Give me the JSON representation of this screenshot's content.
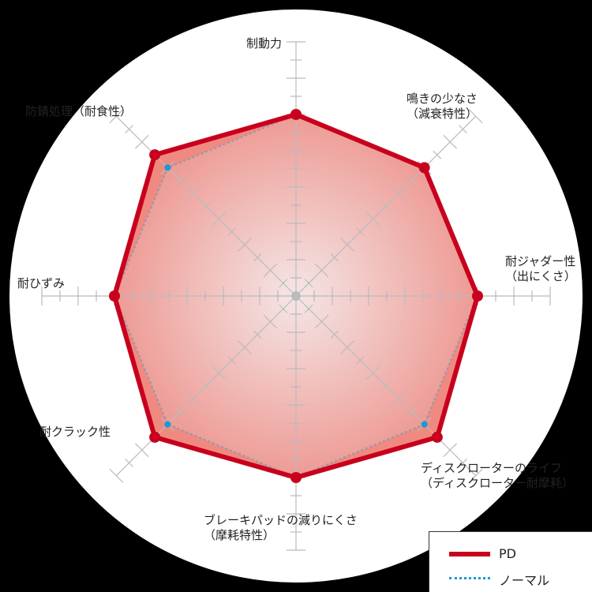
{
  "chart_data": {
    "type": "radar",
    "axes": [
      {
        "label": "制動力"
      },
      {
        "label": "鳴きの少なさ\n（減衰特性）"
      },
      {
        "label": "耐ジャダー性\n（出にくさ）"
      },
      {
        "label": "ディスクローターのライフ\n（ディスクローター耐摩耗）"
      },
      {
        "label": "ブレーキパッドの減りにくさ\n（摩耗特性）"
      },
      {
        "label": "耐クラック性"
      },
      {
        "label": "耐ひずみ"
      },
      {
        "label": "防錆処理（耐食性）"
      }
    ],
    "range": [
      0,
      14
    ],
    "series": [
      {
        "name": "PD",
        "values": [
          10,
          10,
          10,
          11,
          10,
          11,
          10,
          11
        ],
        "color": "#c8001e",
        "style": "solid"
      },
      {
        "name": "ノーマル",
        "values": [
          10,
          10,
          10,
          10,
          10,
          10,
          10,
          10
        ],
        "color": "#1a9ad6",
        "style": "dotted"
      }
    ],
    "legend_position": "bottom-right"
  },
  "colors": {
    "background": "#000000",
    "plot": "#ffffff",
    "fill": "#f08a80",
    "grid": "#bbbbbb"
  }
}
